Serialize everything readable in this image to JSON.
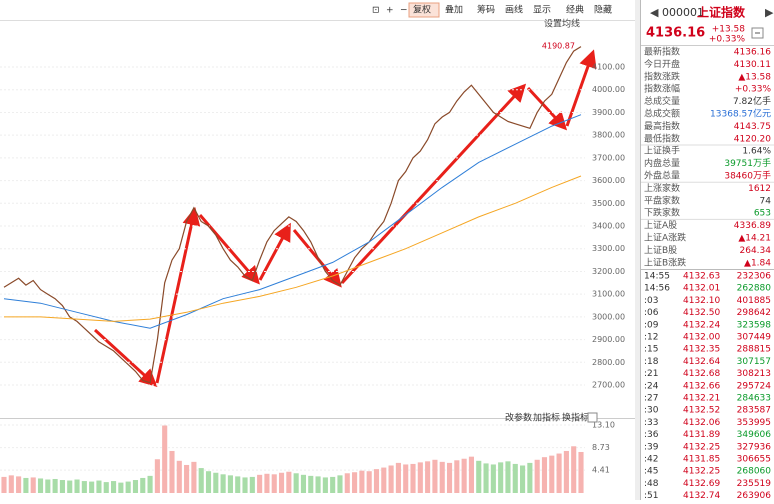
{
  "toolbar": [
    "复权",
    "叠加",
    "筹码",
    "画线",
    "显示",
    "经典",
    "隐藏"
  ],
  "ma_setting": "设置均线",
  "chart_data": [
    {
      "type": "line",
      "annotation": "4190.87",
      "ylim": [
        2590,
        4307
      ],
      "yticks": [
        {
          "value": 2700,
          "label": "2700.00"
        },
        {
          "value": 2800,
          "label": "2800.00"
        },
        {
          "value": 2900,
          "label": "2900.00"
        },
        {
          "value": 3000,
          "label": "3000.00"
        },
        {
          "value": 3100,
          "label": "3100.00"
        },
        {
          "value": 3200,
          "label": "3200.00"
        },
        {
          "value": 3300,
          "label": "3300.00"
        },
        {
          "value": 3400,
          "label": "3400.00"
        },
        {
          "value": 3500,
          "label": "3500.00"
        },
        {
          "value": 3600,
          "label": "3600.00"
        },
        {
          "value": 3700,
          "label": "3700.00"
        },
        {
          "value": 3800,
          "label": "3800.00"
        },
        {
          "value": 3900,
          "label": "3900.00"
        },
        {
          "value": 4000,
          "label": "4000.00"
        },
        {
          "value": 4100,
          "label": "4100.00"
        }
      ],
      "grid": true,
      "series": [
        {
          "color": "#8a4a2a",
          "values": [
            3130,
            3150,
            3170,
            3140,
            3160,
            3120,
            3100,
            3080,
            3050,
            3000,
            2980,
            2950,
            2920,
            2890,
            2870,
            2850,
            2820,
            2790,
            2760,
            2720,
            2710,
            2900,
            3150,
            3250,
            3300,
            3420,
            3480,
            3420,
            3400,
            3360,
            3300,
            3250,
            3220,
            3180,
            3160,
            3250,
            3330,
            3380,
            3410,
            3440,
            3420,
            3380,
            3330,
            3260,
            3200,
            3160,
            3140,
            3200,
            3260,
            3300,
            3330,
            3380,
            3420,
            3500,
            3600,
            3640,
            3700,
            3730,
            3780,
            3850,
            3880,
            3900,
            3950,
            3990,
            4020,
            3980,
            3940,
            3900,
            3880,
            3860,
            3850,
            3840,
            3830,
            3900,
            3950,
            3980,
            4050,
            4120,
            4170,
            4190
          ]
        },
        {
          "color": "#2f7fd8",
          "x": [
            0,
            5,
            10,
            15,
            20,
            25,
            30,
            35,
            40,
            45,
            50,
            55,
            60,
            65,
            70,
            75,
            79
          ],
          "values": [
            3080,
            3060,
            3020,
            2980,
            2950,
            3010,
            3080,
            3120,
            3180,
            3240,
            3330,
            3450,
            3570,
            3680,
            3760,
            3840,
            3890
          ]
        },
        {
          "color": "#f5a623",
          "x": [
            0,
            5,
            10,
            15,
            20,
            25,
            30,
            35,
            40,
            45,
            50,
            55,
            60,
            65,
            70,
            75,
            79
          ],
          "values": [
            3000,
            3000,
            2990,
            2980,
            2990,
            3020,
            3060,
            3090,
            3130,
            3180,
            3240,
            3300,
            3370,
            3440,
            3500,
            3570,
            3620
          ]
        }
      ]
    },
    {
      "type": "bar",
      "buttons": [
        "改参数",
        "加指标",
        "换指标"
      ],
      "ylim": [
        0,
        13.1
      ],
      "yticks": [
        4.41,
        8.73,
        {
          "value": 13.1,
          "label": "13.10"
        }
      ],
      "values": [
        3.1,
        3.4,
        3.2,
        2.9,
        3.0,
        2.8,
        2.6,
        2.7,
        2.5,
        2.4,
        2.6,
        2.3,
        2.2,
        2.4,
        2.1,
        2.3,
        2.0,
        2.2,
        2.5,
        2.9,
        3.3,
        6.5,
        13.0,
        8.1,
        6.2,
        5.4,
        6.0,
        4.8,
        4.2,
        3.9,
        3.6,
        3.4,
        3.2,
        3.0,
        3.1,
        3.5,
        3.7,
        3.6,
        3.9,
        4.1,
        3.8,
        3.5,
        3.3,
        3.2,
        3.0,
        3.1,
        3.4,
        3.8,
        4.0,
        4.3,
        4.2,
        4.6,
        4.9,
        5.3,
        5.8,
        5.5,
        5.6,
        5.9,
        6.1,
        6.4,
        6.0,
        5.8,
        6.3,
        6.6,
        7.0,
        6.2,
        5.7,
        5.5,
        5.9,
        6.1,
        5.6,
        5.3,
        5.8,
        6.4,
        6.9,
        7.2,
        7.6,
        8.1,
        9.0,
        7.9
      ]
    }
  ],
  "quote": {
    "code": "000001",
    "name": "上证指数",
    "price": "4136.16",
    "change": "+13.58",
    "pct": "+0.33%",
    "rows": [
      {
        "label": "最新指数",
        "value": "4136.16",
        "color": "#d0021b"
      },
      {
        "label": "今日开盘",
        "value": "4130.11",
        "color": "#d0021b"
      },
      {
        "label": "指数涨跌",
        "value": "▲13.58",
        "color": "#d0021b"
      },
      {
        "label": "指数涨幅",
        "value": "+0.33%",
        "color": "#d0021b"
      },
      {
        "label": "总成交量",
        "value": "7.82亿手",
        "color": "#333"
      },
      {
        "label": "总成交额",
        "value": "13368.57亿元",
        "color": "#2a6fd6"
      },
      {
        "label": "最高指数",
        "value": "4143.75",
        "color": "#d0021b"
      },
      {
        "label": "最低指数",
        "value": "4120.20",
        "color": "#d0021b"
      },
      {
        "label": "上证换手",
        "value": "1.64%",
        "color": "#333"
      },
      {
        "label": "内盘总量",
        "value": "39751万手",
        "color": "#0a9a2a"
      },
      {
        "label": "外盘总量",
        "value": "38460万手",
        "color": "#d0021b"
      },
      {
        "label": "上涨家数",
        "value": "1612",
        "color": "#d0021b"
      },
      {
        "label": "平盘家数",
        "value": "74",
        "color": "#333"
      },
      {
        "label": "下跌家数",
        "value": "653",
        "color": "#0a9a2a"
      },
      {
        "label": "上证A股",
        "value": "4336.89",
        "color": "#d0021b"
      },
      {
        "label": "上证A涨跌",
        "value": "▲14.21",
        "color": "#d0021b"
      },
      {
        "label": "上证B股",
        "value": "264.34",
        "color": "#d0021b"
      },
      {
        "label": "上证B涨跌",
        "value": "▲1.84",
        "color": "#d0021b"
      }
    ],
    "trades": [
      [
        "14:55",
        "4132.63",
        "232306"
      ],
      [
        "14:56",
        "4132.01",
        "262880"
      ],
      [
        ":03",
        "4132.10",
        "401885"
      ],
      [
        ":06",
        "4132.50",
        "298642"
      ],
      [
        ":09",
        "4132.24",
        "323598"
      ],
      [
        ":12",
        "4132.00",
        "307449"
      ],
      [
        ":15",
        "4132.35",
        "288815"
      ],
      [
        ":18",
        "4132.64",
        "307157"
      ],
      [
        ":21",
        "4132.68",
        "308213"
      ],
      [
        ":24",
        "4132.66",
        "295724"
      ],
      [
        ":27",
        "4132.21",
        "284633"
      ],
      [
        ":30",
        "4132.52",
        "283587"
      ],
      [
        ":33",
        "4132.06",
        "353995"
      ],
      [
        ":36",
        "4131.89",
        "349606"
      ],
      [
        ":39",
        "4132.25",
        "327936"
      ],
      [
        ":42",
        "4131.85",
        "306655"
      ],
      [
        ":45",
        "4132.25",
        "268060"
      ],
      [
        ":48",
        "4132.69",
        "235519"
      ],
      [
        ":51",
        "4132.74",
        "263906"
      ]
    ]
  }
}
